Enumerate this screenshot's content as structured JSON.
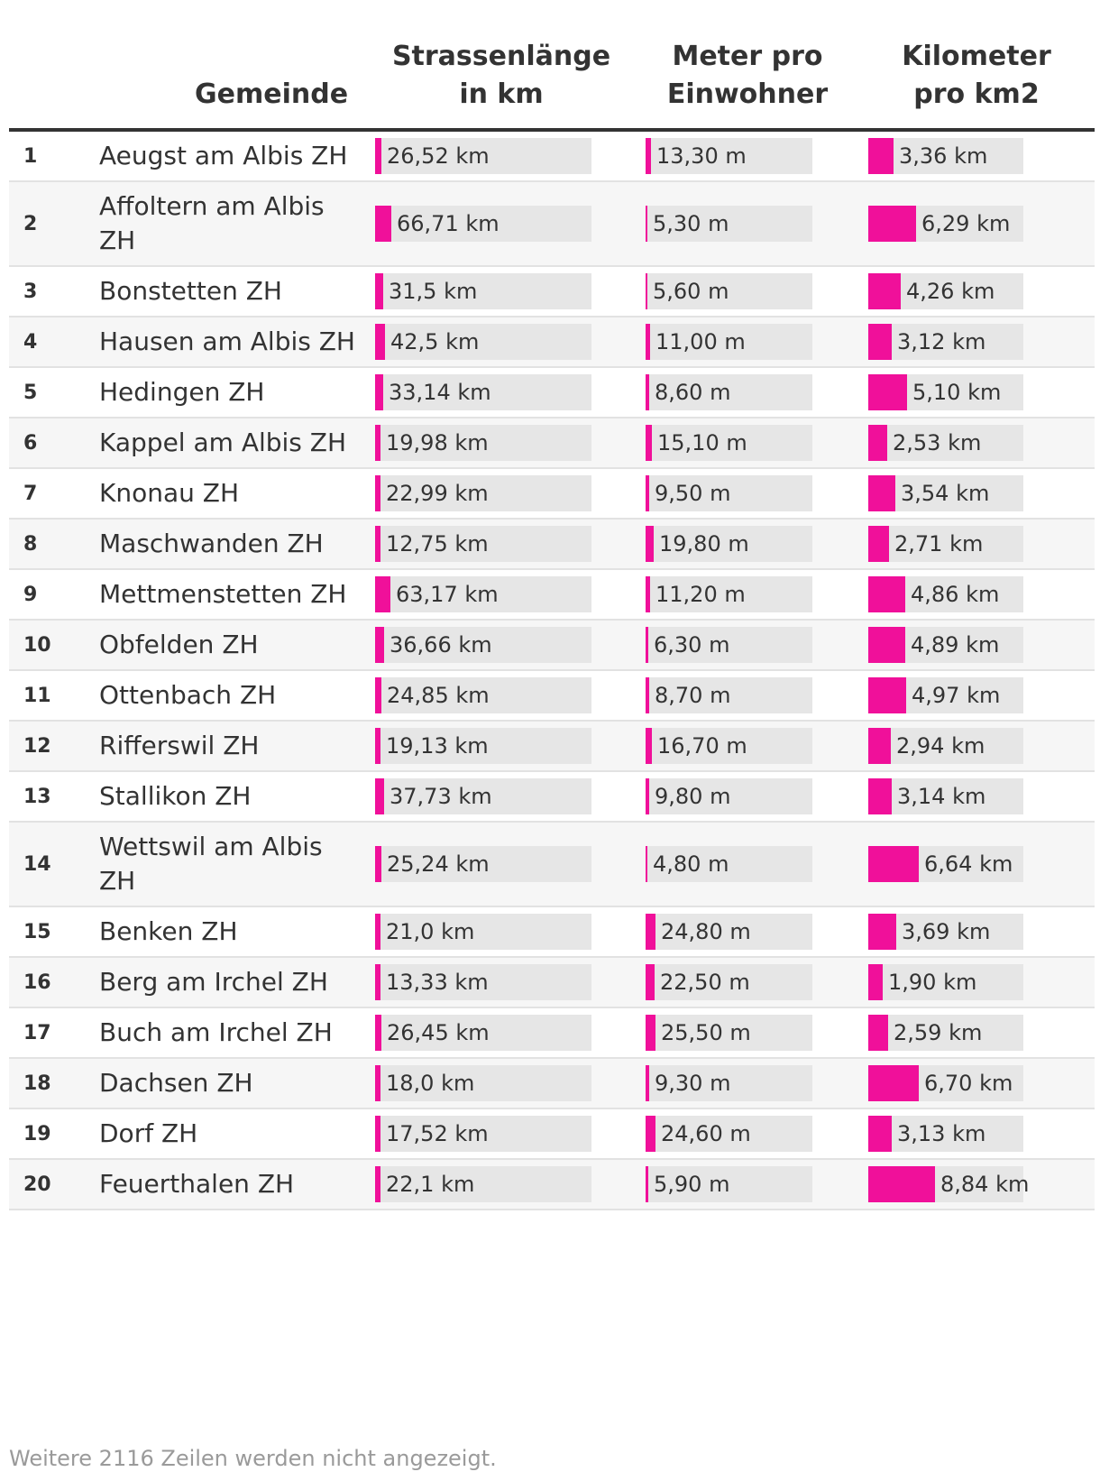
{
  "table": {
    "headers": {
      "gemeinde": "Gemeinde",
      "strassen": [
        "Strassenlänge",
        "in km"
      ],
      "meter": [
        "Meter pro",
        "Einwohner"
      ],
      "kilometer": [
        "Kilometer",
        "pro km2"
      ]
    },
    "footer": "Weitere 2116 Zeilen werden nicht angezeigt."
  },
  "chart_data": {
    "type": "table",
    "columns": [
      "",
      "Gemeinde",
      "Strassenlänge in km",
      "Meter pro Einwohner",
      "Kilometer pro km2"
    ],
    "bar_color": "#f0109a",
    "track_color": "#e6e6e6",
    "rows": [
      {
        "rank": "1",
        "name": "Aeugst am Albis ZH",
        "strasse": "26,52 km",
        "strasse_v": 26.52,
        "meter": "13,30 m",
        "meter_v": 13.3,
        "km": "3,36 km",
        "km_v": 3.36
      },
      {
        "rank": "2",
        "name": "Affoltern am Albis ZH",
        "strasse": "66,71 km",
        "strasse_v": 66.71,
        "meter": "5,30 m",
        "meter_v": 5.3,
        "km": "6,29 km",
        "km_v": 6.29
      },
      {
        "rank": "3",
        "name": "Bonstetten ZH",
        "strasse": "31,5 km",
        "strasse_v": 31.5,
        "meter": "5,60 m",
        "meter_v": 5.6,
        "km": "4,26 km",
        "km_v": 4.26
      },
      {
        "rank": "4",
        "name": "Hausen am Albis ZH",
        "strasse": "42,5 km",
        "strasse_v": 42.5,
        "meter": "11,00 m",
        "meter_v": 11.0,
        "km": "3,12 km",
        "km_v": 3.12
      },
      {
        "rank": "5",
        "name": "Hedingen ZH",
        "strasse": "33,14 km",
        "strasse_v": 33.14,
        "meter": "8,60 m",
        "meter_v": 8.6,
        "km": "5,10 km",
        "km_v": 5.1
      },
      {
        "rank": "6",
        "name": "Kappel am Albis ZH",
        "strasse": "19,98 km",
        "strasse_v": 19.98,
        "meter": "15,10 m",
        "meter_v": 15.1,
        "km": "2,53 km",
        "km_v": 2.53
      },
      {
        "rank": "7",
        "name": "Knonau ZH",
        "strasse": "22,99 km",
        "strasse_v": 22.99,
        "meter": "9,50 m",
        "meter_v": 9.5,
        "km": "3,54 km",
        "km_v": 3.54
      },
      {
        "rank": "8",
        "name": "Maschwanden ZH",
        "strasse": "12,75 km",
        "strasse_v": 12.75,
        "meter": "19,80 m",
        "meter_v": 19.8,
        "km": "2,71 km",
        "km_v": 2.71
      },
      {
        "rank": "9",
        "name": "Mettmenstetten ZH",
        "strasse": "63,17 km",
        "strasse_v": 63.17,
        "meter": "11,20 m",
        "meter_v": 11.2,
        "km": "4,86 km",
        "km_v": 4.86
      },
      {
        "rank": "10",
        "name": "Obfelden ZH",
        "strasse": "36,66 km",
        "strasse_v": 36.66,
        "meter": "6,30 m",
        "meter_v": 6.3,
        "km": "4,89 km",
        "km_v": 4.89
      },
      {
        "rank": "11",
        "name": "Ottenbach ZH",
        "strasse": "24,85 km",
        "strasse_v": 24.85,
        "meter": "8,70 m",
        "meter_v": 8.7,
        "km": "4,97 km",
        "km_v": 4.97
      },
      {
        "rank": "12",
        "name": "Rifferswil ZH",
        "strasse": "19,13 km",
        "strasse_v": 19.13,
        "meter": "16,70 m",
        "meter_v": 16.7,
        "km": "2,94 km",
        "km_v": 2.94
      },
      {
        "rank": "13",
        "name": "Stallikon ZH",
        "strasse": "37,73 km",
        "strasse_v": 37.73,
        "meter": "9,80 m",
        "meter_v": 9.8,
        "km": "3,14 km",
        "km_v": 3.14
      },
      {
        "rank": "14",
        "name": "Wettswil am Albis ZH",
        "strasse": "25,24 km",
        "strasse_v": 25.24,
        "meter": "4,80 m",
        "meter_v": 4.8,
        "km": "6,64 km",
        "km_v": 6.64
      },
      {
        "rank": "15",
        "name": "Benken ZH",
        "strasse": "21,0 km",
        "strasse_v": 21.0,
        "meter": "24,80 m",
        "meter_v": 24.8,
        "km": "3,69 km",
        "km_v": 3.69
      },
      {
        "rank": "16",
        "name": "Berg am Irchel ZH",
        "strasse": "13,33 km",
        "strasse_v": 13.33,
        "meter": "22,50 m",
        "meter_v": 22.5,
        "km": "1,90 km",
        "km_v": 1.9
      },
      {
        "rank": "17",
        "name": "Buch am Irchel ZH",
        "strasse": "26,45 km",
        "strasse_v": 26.45,
        "meter": "25,50 m",
        "meter_v": 25.5,
        "km": "2,59 km",
        "km_v": 2.59
      },
      {
        "rank": "18",
        "name": "Dachsen ZH",
        "strasse": "18,0 km",
        "strasse_v": 18.0,
        "meter": "9,30 m",
        "meter_v": 9.3,
        "km": "6,70 km",
        "km_v": 6.7
      },
      {
        "rank": "19",
        "name": "Dorf ZH",
        "strasse": "17,52 km",
        "strasse_v": 17.52,
        "meter": "24,60 m",
        "meter_v": 24.6,
        "km": "3,13 km",
        "km_v": 3.13
      },
      {
        "rank": "20",
        "name": "Feuerthalen ZH",
        "strasse": "22,1 km",
        "strasse_v": 22.1,
        "meter": "5,90 m",
        "meter_v": 5.9,
        "km": "8,84 km",
        "km_v": 8.84
      }
    ]
  }
}
